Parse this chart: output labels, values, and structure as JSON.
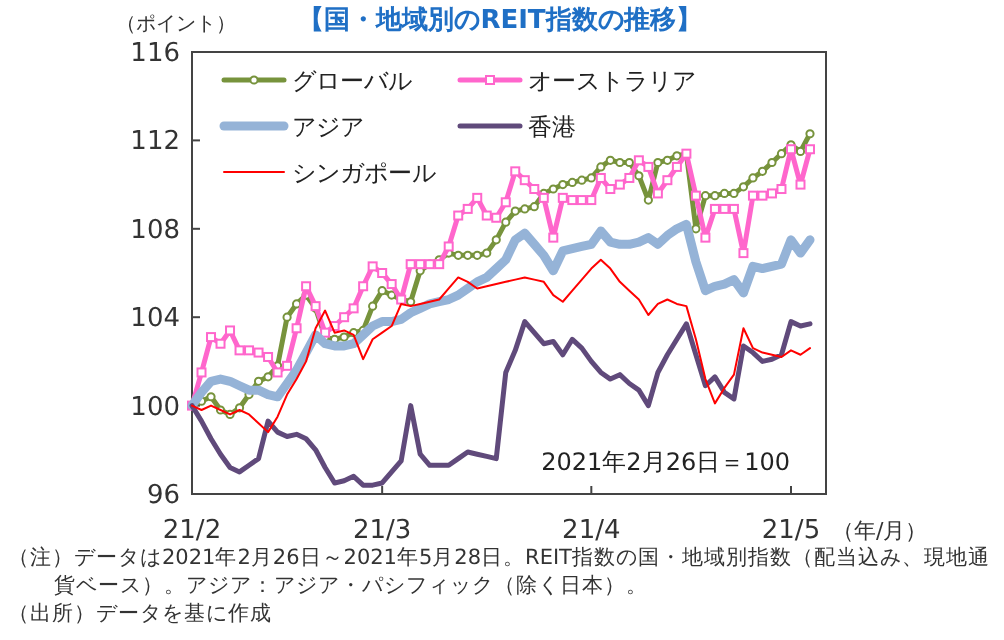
{
  "chart_data": {
    "type": "line",
    "title": "【国・地域別のREIT指数の推移】",
    "ylabel": "（ポイント）",
    "xlabel": "（年/月）",
    "categories": [
      "21/2",
      null,
      null,
      null,
      null,
      null,
      null,
      null,
      null,
      null,
      null,
      null,
      null,
      null,
      null,
      null,
      null,
      null,
      null,
      null,
      "21/3",
      null,
      null,
      null,
      null,
      null,
      null,
      null,
      null,
      null,
      null,
      null,
      null,
      null,
      null,
      null,
      null,
      null,
      null,
      null,
      null,
      null,
      "21/4",
      null,
      null,
      null,
      null,
      null,
      null,
      null,
      null,
      null,
      null,
      null,
      null,
      null,
      null,
      null,
      null,
      null,
      null,
      null,
      null,
      "21/5",
      null,
      null
    ],
    "ylim": [
      96,
      116
    ],
    "yticks": [
      96,
      100,
      104,
      108,
      112,
      116
    ],
    "grid": false,
    "legend": "top left",
    "line_style": "solid",
    "series": [
      {
        "name": "グローバル",
        "color": "#77933c",
        "marker": "circle",
        "values": [
          100,
          100.2,
          100.4,
          99.8,
          99.6,
          99.9,
          100.5,
          101.1,
          101.3,
          101.8,
          104.0,
          104.6,
          105.0,
          104.4,
          103.1,
          103.0,
          103.1,
          103.3,
          103.4,
          104.5,
          105.2,
          105.0,
          104.8,
          104.7,
          106.1,
          106.4,
          106.6,
          106.9,
          106.8,
          106.8,
          106.8,
          106.9,
          107.5,
          108.3,
          108.8,
          108.9,
          109.0,
          109.6,
          109.8,
          110.0,
          110.1,
          110.2,
          110.3,
          110.8,
          111.1,
          111.0,
          111.0,
          110.4,
          109.3,
          111.0,
          111.1,
          111.3,
          111.4,
          108.0,
          109.5,
          109.5,
          109.6,
          109.6,
          109.9,
          110.3,
          110.6,
          111.0,
          111.4,
          111.8,
          111.5,
          112.3
        ]
      },
      {
        "name": "オーストラリア",
        "color": "#ff66cc",
        "marker": "square",
        "values": [
          100,
          101.5,
          103.1,
          102.8,
          103.4,
          102.5,
          102.5,
          102.4,
          102.2,
          101.5,
          101.8,
          103.5,
          105.4,
          104.5,
          103.3,
          103.6,
          104.0,
          104.4,
          105.4,
          106.3,
          106.0,
          105.5,
          104.8,
          106.4,
          106.4,
          106.4,
          106.4,
          107.2,
          108.6,
          108.9,
          109.4,
          108.6,
          108.5,
          109.2,
          110.6,
          110.2,
          109.8,
          109.4,
          107.6,
          109.4,
          109.3,
          109.3,
          109.3,
          110.3,
          109.8,
          110.0,
          110.3,
          111.1,
          110.8,
          109.6,
          110.2,
          110.8,
          111.4,
          109.5,
          107.6,
          108.9,
          108.9,
          108.9,
          106.9,
          109.5,
          109.5,
          109.6,
          109.8,
          111.6,
          110.0,
          111.6
        ]
      },
      {
        "name": "アジア",
        "color": "#95b3d7",
        "marker": "none",
        "values": [
          100,
          100.6,
          101.1,
          101.2,
          101.1,
          100.9,
          100.7,
          100.7,
          100.5,
          100.4,
          101.0,
          101.6,
          102.4,
          103.2,
          102.8,
          102.7,
          102.7,
          102.8,
          103.2,
          103.6,
          103.8,
          103.8,
          103.9,
          104.2,
          104.4,
          104.6,
          104.7,
          104.8,
          105.0,
          105.3,
          105.6,
          105.8,
          106.2,
          106.6,
          107.5,
          107.8,
          107.3,
          106.8,
          106.1,
          107.0,
          107.1,
          107.2,
          107.3,
          107.9,
          107.4,
          107.3,
          107.3,
          107.4,
          107.6,
          107.3,
          107.7,
          108.0,
          108.2,
          106.5,
          105.2,
          105.4,
          105.5,
          105.7,
          105.1,
          106.3,
          106.2,
          106.3,
          106.4,
          107.5,
          106.9,
          107.5
        ]
      },
      {
        "name": "香港",
        "color": "#604a7b",
        "marker": "none",
        "values": [
          100,
          99.3,
          98.5,
          97.8,
          97.2,
          97.0,
          97.3,
          97.6,
          99.3,
          98.8,
          98.6,
          98.7,
          98.5,
          98.0,
          97.2,
          96.5,
          96.6,
          96.8,
          96.4,
          96.4,
          96.5,
          97.0,
          97.5,
          100.0,
          97.8,
          97.3,
          97.3,
          97.3,
          97.6,
          97.9,
          97.8,
          97.7,
          97.6,
          101.5,
          102.5,
          103.8,
          103.3,
          102.8,
          102.9,
          102.3,
          103.0,
          102.6,
          102.0,
          101.5,
          101.2,
          101.4,
          101.0,
          100.7,
          100.0,
          101.5,
          102.3,
          103.0,
          103.7,
          102.3,
          100.9,
          101.3,
          100.6,
          100.3,
          102.7,
          102.4,
          102.0,
          102.1,
          102.3,
          103.8,
          103.6,
          103.7
        ]
      },
      {
        "name": "シンガポール",
        "color": "#ff0000",
        "marker": "none",
        "values": [
          100,
          99.8,
          100,
          99.8,
          99.6,
          99.8,
          99.6,
          99.2,
          98.8,
          99.5,
          100.5,
          101.2,
          102.0,
          103.5,
          104.3,
          103.3,
          103.4,
          103.2,
          102.1,
          103.0,
          103.3,
          103.6,
          104.6,
          104.5,
          104.6,
          104.7,
          104.8,
          105.3,
          105.8,
          105.6,
          105.3,
          105.4,
          105.5,
          105.6,
          105.7,
          105.8,
          105.7,
          105.6,
          105.0,
          104.7,
          105.2,
          105.7,
          106.2,
          106.6,
          106.2,
          105.6,
          105.2,
          104.8,
          104.1,
          104.6,
          104.8,
          104.6,
          104.5,
          103.0,
          101.2,
          100.1,
          100.8,
          101.4,
          103.5,
          102.6,
          102.4,
          102.3,
          102.2,
          102.5,
          102.3,
          102.6
        ]
      }
    ],
    "annotations": [
      "2021年2月26日＝100",
      "（注）データは2021年2月26日～2021年5月28日。REIT指数の国・地域別指数（配当込み、現地通貨ベース）。アジア：アジア・パシフィック（除く日本）。",
      "（出所）データを基に作成"
    ]
  }
}
